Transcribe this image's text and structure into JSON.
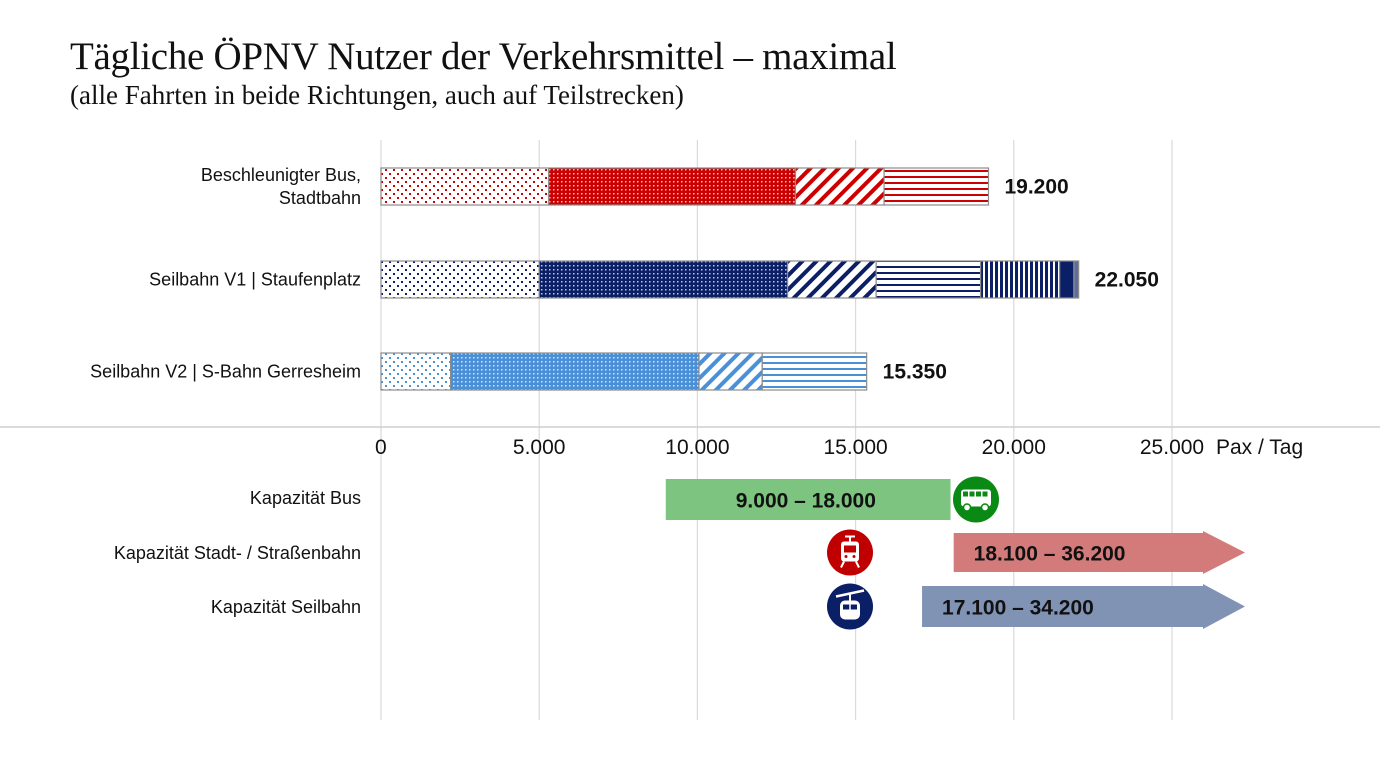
{
  "title": "Tägliche ÖPNV Nutzer der Verkehrsmittel – maximal",
  "subtitle": "(alle Fahrten in beide Richtungen, auch auf Teilstrecken)",
  "chart_data": {
    "type": "bar",
    "orientation": "horizontal-stacked",
    "title": "Tägliche ÖPNV Nutzer der Verkehrsmittel – maximal",
    "subtitle": "(alle Fahrten in beide Richtungen, auch auf Teilstrecken)",
    "xlabel": "Pax / Tag",
    "xlim": [
      0,
      27000
    ],
    "xticks": [
      0,
      5000,
      10000,
      15000,
      20000,
      25000
    ],
    "xtick_labels": [
      "0",
      "5.000",
      "10.000",
      "15.000",
      "20.000",
      "25.000"
    ],
    "grid": "vertical",
    "categories": [
      {
        "label_lines": [
          "Beschleunigter Bus,",
          "Stadtbahn"
        ],
        "total": 19200,
        "total_label": "19.200",
        "color": "#cc0000",
        "segments": [
          {
            "value": 5300,
            "pattern": "dots-sparse"
          },
          {
            "value": 7800,
            "pattern": "dots-dense"
          },
          {
            "value": 2800,
            "pattern": "diagonal"
          },
          {
            "value": 3300,
            "pattern": "horizontal"
          }
        ]
      },
      {
        "label_lines": [
          "Seilbahn V1 | Staufenplatz"
        ],
        "total": 22050,
        "total_label": "22.050",
        "color": "#0a1f66",
        "segments": [
          {
            "value": 5000,
            "pattern": "dots-sparse"
          },
          {
            "value": 7850,
            "pattern": "dots-dense"
          },
          {
            "value": 2800,
            "pattern": "diagonal"
          },
          {
            "value": 3300,
            "pattern": "horizontal"
          },
          {
            "value": 2500,
            "pattern": "vertical"
          },
          {
            "value": 450,
            "pattern": "solid"
          },
          {
            "value": 150,
            "pattern": "solid-light"
          }
        ]
      },
      {
        "label_lines": [
          "Seilbahn V2 | S-Bahn Gerresheim"
        ],
        "total": 15350,
        "total_label": "15.350",
        "color": "#4a90d9",
        "segments": [
          {
            "value": 2200,
            "pattern": "dots-sparse"
          },
          {
            "value": 7850,
            "pattern": "dots-dense"
          },
          {
            "value": 2000,
            "pattern": "diagonal"
          },
          {
            "value": 3300,
            "pattern": "horizontal"
          }
        ]
      }
    ],
    "capacities": [
      {
        "label": "Kapazität Bus",
        "min": 9000,
        "max": 18000,
        "range_label": "9.000 – 18.000",
        "color": "#7cc47f",
        "icon": "bus-icon",
        "icon_color": "#0a8a14",
        "open_ended": false
      },
      {
        "label": "Kapazität Stadt- / Straßenbahn",
        "min": 18100,
        "max": 36200,
        "range_label": "18.100 – 36.200",
        "color": "#d37b7b",
        "icon": "tram-icon",
        "icon_color": "#c00000",
        "open_ended": true
      },
      {
        "label": "Kapazität Seilbahn",
        "min": 17100,
        "max": 34200,
        "range_label": "17.100 – 34.200",
        "color": "#8193b5",
        "icon": "cable-car-icon",
        "icon_color": "#0a1f66",
        "open_ended": true
      }
    ]
  }
}
